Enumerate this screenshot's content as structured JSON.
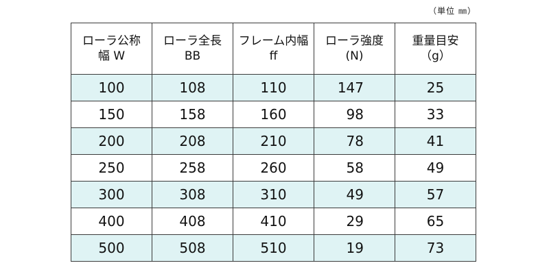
{
  "unit_note": "（単位 ㎜）",
  "columns": [
    {
      "line1": "ローラ公称",
      "line2": "幅 W"
    },
    {
      "line1": "ローラ全長",
      "line2": "BB"
    },
    {
      "line1": "フレーム内幅",
      "line2": "ff"
    },
    {
      "line1": "ローラ強度",
      "line2": "(N)"
    },
    {
      "line1": "重量目安",
      "line2": "（g）"
    }
  ],
  "rows": [
    [
      "100",
      "108",
      "110",
      "147",
      "25"
    ],
    [
      "150",
      "158",
      "160",
      "98",
      "33"
    ],
    [
      "200",
      "208",
      "210",
      "78",
      "41"
    ],
    [
      "250",
      "258",
      "260",
      "58",
      "49"
    ],
    [
      "300",
      "308",
      "310",
      "49",
      "57"
    ],
    [
      "400",
      "408",
      "410",
      "29",
      "65"
    ],
    [
      "500",
      "508",
      "510",
      "19",
      "73"
    ]
  ],
  "colors": {
    "shaded_row": "#dff3f4",
    "border": "#3a3a3a"
  }
}
